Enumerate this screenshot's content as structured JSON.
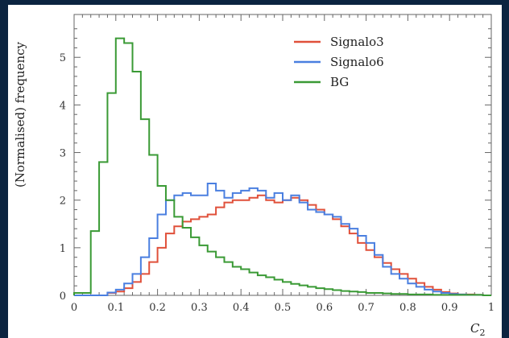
{
  "chart_data": {
    "type": "line",
    "title": "",
    "xlabel": "C",
    "xlabel_sub": "2",
    "ylabel": "(Normalised) frequency",
    "xlim": [
      0,
      1
    ],
    "ylim": [
      0,
      5.9
    ],
    "x_ticks": [
      "0",
      "0.1",
      "0.2",
      "0.3",
      "0.4",
      "0.5",
      "0.6",
      "0.7",
      "0.8",
      "0.9",
      "1"
    ],
    "y_ticks": [
      "0",
      "1",
      "2",
      "3",
      "4",
      "5"
    ],
    "grid": false,
    "legend_position": "top-right",
    "bin_width": 0.02,
    "bin_starts": [
      0.0,
      0.02,
      0.04,
      0.06,
      0.08,
      0.1,
      0.12,
      0.14,
      0.16,
      0.18,
      0.2,
      0.22,
      0.24,
      0.26,
      0.28,
      0.3,
      0.32,
      0.34,
      0.36,
      0.38,
      0.4,
      0.42,
      0.44,
      0.46,
      0.48,
      0.5,
      0.52,
      0.54,
      0.56,
      0.58,
      0.6,
      0.62,
      0.64,
      0.66,
      0.68,
      0.7,
      0.72,
      0.74,
      0.76,
      0.78,
      0.8,
      0.82,
      0.84,
      0.86,
      0.88,
      0.9,
      0.92,
      0.94,
      0.96,
      0.98
    ],
    "series": [
      {
        "name": "Signalo3",
        "color": "#e0503a",
        "values": [
          0,
          0,
          0,
          0,
          0.05,
          0.08,
          0.15,
          0.28,
          0.45,
          0.7,
          1.0,
          1.3,
          1.45,
          1.55,
          1.6,
          1.65,
          1.7,
          1.85,
          1.95,
          2.0,
          2.0,
          2.05,
          2.1,
          2.0,
          1.95,
          2.0,
          2.05,
          2.0,
          1.9,
          1.8,
          1.7,
          1.6,
          1.45,
          1.3,
          1.1,
          0.95,
          0.8,
          0.68,
          0.55,
          0.45,
          0.35,
          0.26,
          0.18,
          0.12,
          0.07,
          0.04,
          0.02,
          0.02,
          0.01,
          0
        ]
      },
      {
        "name": "Signalo6",
        "color": "#4a7fe0",
        "values": [
          0,
          0,
          0,
          0,
          0.06,
          0.12,
          0.25,
          0.45,
          0.8,
          1.2,
          1.7,
          2.0,
          2.1,
          2.15,
          2.1,
          2.1,
          2.35,
          2.2,
          2.05,
          2.15,
          2.2,
          2.25,
          2.2,
          2.05,
          2.15,
          2.0,
          2.1,
          1.95,
          1.8,
          1.75,
          1.7,
          1.65,
          1.5,
          1.4,
          1.25,
          1.1,
          0.85,
          0.6,
          0.45,
          0.35,
          0.25,
          0.18,
          0.12,
          0.08,
          0.05,
          0.03,
          0.02,
          0.01,
          0.01,
          0
        ]
      },
      {
        "name": "BG",
        "color": "#3a9a35",
        "values": [
          0.05,
          0.05,
          1.35,
          2.8,
          4.25,
          5.4,
          5.3,
          4.7,
          3.7,
          2.95,
          2.3,
          2.0,
          1.65,
          1.42,
          1.22,
          1.05,
          0.92,
          0.8,
          0.7,
          0.6,
          0.55,
          0.48,
          0.42,
          0.38,
          0.33,
          0.28,
          0.24,
          0.21,
          0.18,
          0.15,
          0.13,
          0.11,
          0.09,
          0.08,
          0.07,
          0.05,
          0.05,
          0.04,
          0.03,
          0.03,
          0.02,
          0.02,
          0.02,
          0.01,
          0.01,
          0.01,
          0.01,
          0.01,
          0.01,
          0
        ]
      }
    ]
  }
}
